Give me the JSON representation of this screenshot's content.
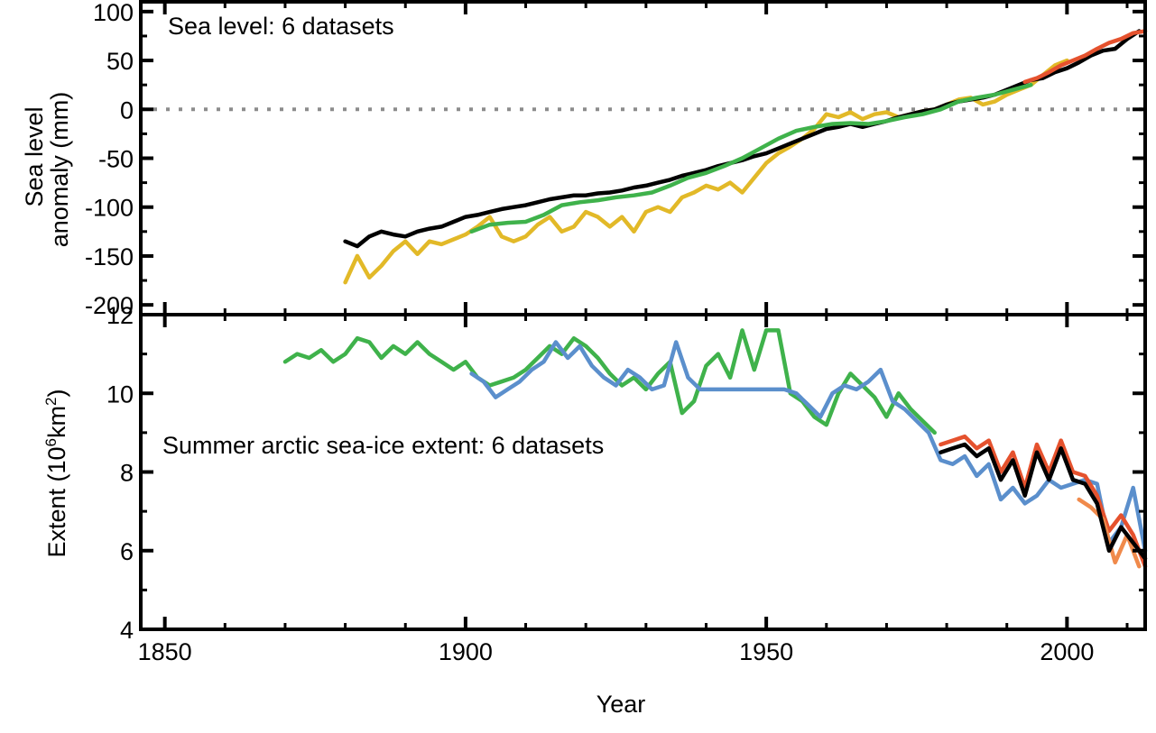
{
  "chart_data": [
    {
      "type": "line",
      "title": "Sea level: 6 datasets",
      "ylabel_lines": [
        "Sea level",
        "anomaly (mm)"
      ],
      "xlim": [
        1846,
        2013
      ],
      "ylim": [
        -210,
        110
      ],
      "yticks": [
        100,
        50,
        0,
        -50,
        -100,
        -150,
        -200
      ],
      "ytick_labels": [
        "100",
        "50",
        "0",
        "-50",
        "-100",
        "-150",
        "-200"
      ],
      "zero_line": {
        "value": 0,
        "style": "dotted",
        "color": "#8c8c8c"
      },
      "series": [
        {
          "color": "#e2b928",
          "x": [
            1880,
            1882,
            1884,
            1886,
            1888,
            1890,
            1892,
            1894,
            1896,
            1898,
            1900,
            1902,
            1904,
            1906,
            1908,
            1910,
            1912,
            1914,
            1916,
            1918,
            1920,
            1922,
            1924,
            1926,
            1928,
            1930,
            1932,
            1934,
            1936,
            1938,
            1940,
            1942,
            1944,
            1946,
            1948,
            1950,
            1952,
            1954,
            1956,
            1958,
            1960,
            1962,
            1964,
            1966,
            1968,
            1970,
            1972,
            1974,
            1976,
            1978,
            1980,
            1982,
            1984,
            1986,
            1988,
            1990,
            1992,
            1994,
            1996,
            1998,
            2000
          ],
          "values": [
            -177,
            -150,
            -172,
            -160,
            -145,
            -135,
            -148,
            -135,
            -138,
            -133,
            -128,
            -120,
            -110,
            -130,
            -135,
            -130,
            -118,
            -110,
            -125,
            -120,
            -105,
            -110,
            -120,
            -110,
            -125,
            -105,
            -100,
            -105,
            -90,
            -85,
            -78,
            -82,
            -75,
            -85,
            -70,
            -55,
            -45,
            -38,
            -30,
            -20,
            -5,
            -8,
            -3,
            -10,
            -5,
            -3,
            -8,
            -5,
            -2,
            0,
            5,
            10,
            12,
            5,
            8,
            15,
            20,
            25,
            35,
            45,
            50
          ]
        },
        {
          "color": "#000000",
          "x": [
            1880,
            1882,
            1884,
            1886,
            1888,
            1890,
            1892,
            1894,
            1896,
            1898,
            1900,
            1902,
            1904,
            1906,
            1908,
            1910,
            1912,
            1914,
            1916,
            1918,
            1920,
            1922,
            1924,
            1926,
            1928,
            1930,
            1932,
            1934,
            1936,
            1938,
            1940,
            1942,
            1944,
            1946,
            1948,
            1950,
            1952,
            1954,
            1956,
            1958,
            1960,
            1962,
            1964,
            1966,
            1968,
            1970,
            1972,
            1974,
            1976,
            1978,
            1980,
            1982,
            1984,
            1986,
            1988,
            1990,
            1992,
            1994,
            1996,
            1998,
            2000,
            2002,
            2004,
            2006,
            2008,
            2010,
            2012
          ],
          "values": [
            -135,
            -140,
            -130,
            -125,
            -128,
            -130,
            -125,
            -122,
            -120,
            -115,
            -110,
            -108,
            -105,
            -102,
            -100,
            -98,
            -95,
            -92,
            -90,
            -88,
            -88,
            -86,
            -85,
            -83,
            -80,
            -78,
            -75,
            -72,
            -68,
            -65,
            -62,
            -58,
            -55,
            -52,
            -48,
            -45,
            -40,
            -35,
            -30,
            -25,
            -20,
            -18,
            -15,
            -18,
            -15,
            -12,
            -8,
            -5,
            -2,
            0,
            5,
            8,
            10,
            12,
            15,
            20,
            25,
            30,
            32,
            38,
            42,
            48,
            55,
            60,
            62,
            72,
            80
          ]
        },
        {
          "color": "#3fb24b",
          "x": [
            1901,
            1904,
            1907,
            1910,
            1913,
            1916,
            1919,
            1922,
            1925,
            1928,
            1931,
            1934,
            1937,
            1940,
            1943,
            1946,
            1949,
            1952,
            1955,
            1958,
            1961,
            1964,
            1967,
            1970,
            1973,
            1976,
            1979,
            1982,
            1985,
            1988,
            1991,
            1994
          ],
          "values": [
            -125,
            -118,
            -116,
            -115,
            -108,
            -98,
            -95,
            -93,
            -90,
            -88,
            -85,
            -78,
            -70,
            -65,
            -58,
            -50,
            -40,
            -30,
            -22,
            -18,
            -15,
            -14,
            -15,
            -12,
            -8,
            -5,
            0,
            8,
            12,
            15,
            20,
            25
          ]
        },
        {
          "color": "#e5522e",
          "x": [
            1993,
            1995,
            1997,
            1999,
            2001,
            2003,
            2005,
            2007,
            2009,
            2011,
            2013
          ],
          "values": [
            28,
            32,
            38,
            45,
            50,
            55,
            62,
            68,
            72,
            78,
            80
          ]
        }
      ]
    },
    {
      "type": "line",
      "title": "Summer arctic sea-ice extent: 6 datasets",
      "ylabel": "Extent (10",
      "ylabel_sup": "6",
      "ylabel_unit": "km",
      "ylabel_sup2": "2",
      "ylabel_close": ")",
      "xlabel": "Year",
      "xlim": [
        1846,
        2013
      ],
      "ylim": [
        4,
        12
      ],
      "yticks": [
        12,
        10,
        8,
        6,
        4
      ],
      "ytick_labels": [
        "12",
        "10",
        "8",
        "6",
        "4"
      ],
      "xticks": [
        1850,
        1900,
        1950,
        2000
      ],
      "xtick_labels": [
        "1850",
        "1900",
        "1950",
        "2000"
      ],
      "series": [
        {
          "color": "#3fb24b",
          "x": [
            1870,
            1872,
            1874,
            1876,
            1878,
            1880,
            1882,
            1884,
            1886,
            1888,
            1890,
            1892,
            1894,
            1896,
            1898,
            1900,
            1902,
            1904,
            1906,
            1908,
            1910,
            1912,
            1914,
            1916,
            1918,
            1920,
            1922,
            1924,
            1926,
            1928,
            1930,
            1932,
            1934,
            1936,
            1938,
            1940,
            1942,
            1944,
            1946,
            1948,
            1950,
            1952,
            1954,
            1956,
            1958,
            1960,
            1962,
            1964,
            1966,
            1968,
            1970,
            1972,
            1974,
            1976,
            1978
          ],
          "values": [
            10.8,
            11.0,
            10.9,
            11.1,
            10.8,
            11.0,
            11.4,
            11.3,
            10.9,
            11.2,
            11.0,
            11.3,
            11.0,
            10.8,
            10.6,
            10.8,
            10.4,
            10.2,
            10.3,
            10.4,
            10.6,
            10.9,
            11.2,
            11.0,
            11.4,
            11.2,
            10.9,
            10.5,
            10.2,
            10.4,
            10.1,
            10.5,
            10.8,
            9.5,
            9.8,
            10.7,
            11.0,
            10.4,
            11.6,
            10.6,
            11.6,
            11.6,
            10.0,
            9.8,
            9.4,
            9.2,
            10.0,
            10.5,
            10.2,
            9.9,
            9.4,
            10.0,
            9.6,
            9.3,
            9.0
          ]
        },
        {
          "color": "#5b8fcc",
          "x": [
            1901,
            1903,
            1905,
            1907,
            1909,
            1911,
            1913,
            1915,
            1917,
            1919,
            1921,
            1923,
            1925,
            1927,
            1929,
            1931,
            1933,
            1935,
            1937,
            1939,
            1953,
            1955,
            1957,
            1959,
            1961,
            1963,
            1965,
            1967,
            1969,
            1971,
            1973,
            1975,
            1977,
            1979,
            1981,
            1983,
            1985,
            1987,
            1989,
            1991,
            1993,
            1995,
            1997,
            1999,
            2001,
            2003,
            2005,
            2007,
            2009,
            2011,
            2013
          ],
          "values": [
            10.5,
            10.3,
            9.9,
            10.1,
            10.3,
            10.6,
            10.8,
            11.3,
            10.9,
            11.2,
            10.7,
            10.4,
            10.2,
            10.6,
            10.4,
            10.1,
            10.2,
            11.3,
            10.4,
            10.1,
            10.1,
            10.0,
            9.7,
            9.4,
            10.0,
            10.2,
            10.1,
            10.3,
            10.6,
            9.8,
            9.6,
            9.3,
            9.0,
            8.3,
            8.2,
            8.4,
            7.9,
            8.2,
            7.3,
            7.6,
            7.2,
            7.4,
            7.8,
            7.6,
            7.7,
            7.8,
            7.7,
            6.2,
            6.6,
            7.6,
            6.0
          ]
        },
        {
          "color": "#e5522e",
          "x": [
            1979,
            1981,
            1983,
            1985,
            1987,
            1989,
            1991,
            1993,
            1995,
            1997,
            1999,
            2001,
            2003,
            2005,
            2007,
            2009,
            2011,
            2013
          ],
          "values": [
            8.7,
            8.8,
            8.9,
            8.6,
            8.8,
            8.0,
            8.5,
            7.6,
            8.7,
            8.0,
            8.8,
            8.0,
            7.9,
            7.4,
            6.5,
            6.9,
            6.4,
            5.6
          ]
        },
        {
          "color": "#f08a4b",
          "x": [
            2002,
            2004,
            2006,
            2008,
            2010,
            2012
          ],
          "values": [
            7.3,
            7.1,
            6.8,
            5.7,
            6.4,
            5.6
          ]
        },
        {
          "color": "#000000",
          "x": [
            1979,
            1981,
            1983,
            1985,
            1987,
            1989,
            1991,
            1993,
            1995,
            1997,
            1999,
            2001,
            2003,
            2005,
            2007,
            2009,
            2011,
            2013
          ],
          "values": [
            8.5,
            8.6,
            8.7,
            8.4,
            8.6,
            7.8,
            8.3,
            7.4,
            8.5,
            7.8,
            8.6,
            7.8,
            7.7,
            7.2,
            6.0,
            6.6,
            6.2,
            5.8
          ]
        }
      ]
    }
  ]
}
